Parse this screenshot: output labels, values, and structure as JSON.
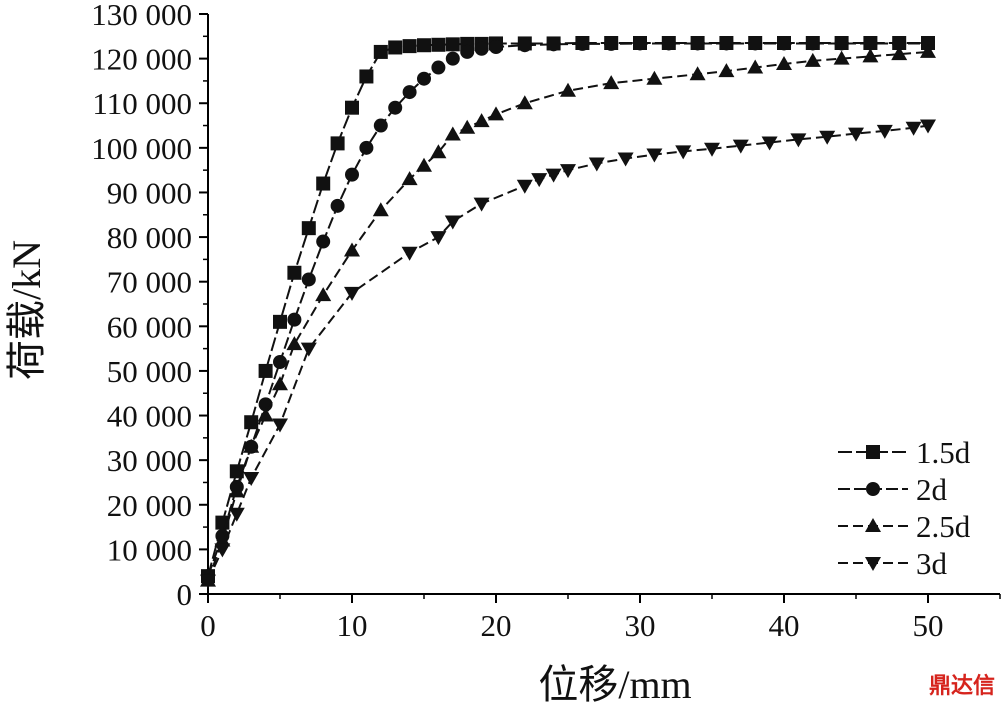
{
  "chart_data": {
    "type": "line",
    "xlabel": "位移/mm",
    "ylabel": "荷载/kN",
    "xlim": [
      0,
      55
    ],
    "ylim": [
      0,
      130000
    ],
    "xticks": [
      0,
      10,
      20,
      30,
      40,
      50
    ],
    "xtick_labels": [
      "0",
      "10",
      "20",
      "30",
      "40",
      "50"
    ],
    "yticks": [
      0,
      10000,
      20000,
      30000,
      40000,
      50000,
      60000,
      70000,
      80000,
      90000,
      100000,
      110000,
      120000,
      130000
    ],
    "ytick_labels": [
      "0",
      "10 000",
      "20 000",
      "30 000",
      "40 000",
      "50 000",
      "60 000",
      "70 000",
      "80 000",
      "90 000",
      "100 000",
      "110 000",
      "120 000",
      "130 000"
    ],
    "grid": false,
    "legend_position": "bottom-right",
    "series": [
      {
        "name": "1.5d",
        "marker": "square",
        "x": [
          0,
          1,
          2,
          3,
          4,
          5,
          6,
          7,
          8,
          9,
          10,
          11,
          12,
          13,
          14,
          15,
          16,
          17,
          18,
          19,
          20,
          22,
          24,
          26,
          28,
          30,
          32,
          34,
          36,
          38,
          40,
          42,
          44,
          46,
          48,
          50
        ],
        "y": [
          4000,
          16000,
          27500,
          38500,
          50000,
          61000,
          72000,
          82000,
          92000,
          101000,
          109000,
          116000,
          121500,
          122500,
          122800,
          123000,
          123100,
          123200,
          123300,
          123300,
          123400,
          123400,
          123400,
          123500,
          123500,
          123500,
          123500,
          123500,
          123500,
          123500,
          123500,
          123500,
          123500,
          123500,
          123500,
          123500
        ]
      },
      {
        "name": "2d",
        "marker": "circle",
        "x": [
          0,
          1,
          2,
          3,
          4,
          5,
          6,
          7,
          8,
          9,
          10,
          11,
          12,
          13,
          14,
          15,
          16,
          17,
          18,
          19,
          20,
          22,
          24,
          26,
          28,
          30,
          32,
          34,
          36,
          38,
          40,
          42,
          44,
          46,
          48,
          50
        ],
        "y": [
          4000,
          13000,
          24000,
          33000,
          42500,
          52000,
          61500,
          70500,
          79000,
          87000,
          94000,
          100000,
          105000,
          109000,
          112500,
          115500,
          118000,
          120000,
          121500,
          122200,
          122600,
          123000,
          123200,
          123300,
          123300,
          123400,
          123400,
          123400,
          123400,
          123400,
          123400,
          123400,
          123400,
          123400,
          123400,
          123400
        ]
      },
      {
        "name": "2.5d",
        "marker": "triangle-up",
        "x": [
          0,
          1,
          2,
          3,
          4,
          5,
          6,
          8,
          10,
          12,
          14,
          15,
          16,
          17,
          18,
          19,
          20,
          22,
          25,
          28,
          31,
          34,
          36,
          38,
          40,
          42,
          44,
          46,
          48,
          50
        ],
        "y": [
          3000,
          12000,
          23000,
          33000,
          40000,
          47000,
          56000,
          67000,
          77000,
          86000,
          93000,
          96000,
          99000,
          103000,
          104500,
          106000,
          107500,
          110000,
          112800,
          114500,
          115500,
          116500,
          117200,
          118000,
          118800,
          119500,
          120000,
          120500,
          121000,
          121500
        ]
      },
      {
        "name": "3d",
        "marker": "triangle-down",
        "x": [
          0,
          1,
          2,
          3,
          5,
          7,
          10,
          14,
          16,
          17,
          19,
          22,
          23,
          24,
          25,
          27,
          29,
          31,
          33,
          35,
          37,
          39,
          41,
          43,
          45,
          47,
          49,
          50
        ],
        "y": [
          3000,
          10000,
          18000,
          26000,
          38000,
          55000,
          67500,
          76500,
          80000,
          83500,
          87500,
          91500,
          93000,
          94000,
          95000,
          96500,
          97600,
          98500,
          99200,
          99800,
          100500,
          101200,
          101900,
          102500,
          103200,
          103800,
          104500,
          105000
        ]
      }
    ]
  },
  "watermark": "鼎达信"
}
